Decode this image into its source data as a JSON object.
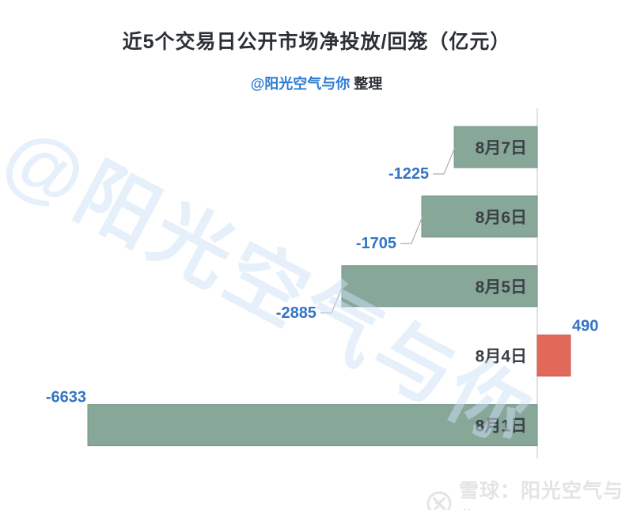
{
  "title": "近5个交易日公开市场净投放/回笼（亿元）",
  "subtitle": {
    "handle": "@阳光空气与你",
    "suffix": "整理"
  },
  "watermark": "@阳光空气与你",
  "footer": {
    "logo": "xueqiu-snowball-icon",
    "source": "雪球：阳光空气与你"
  },
  "colors": {
    "title_text": "#2b2f36",
    "subtitle_handle": "#2d7bd3",
    "bar_negative": "#87a798",
    "bar_negative_border": "#74968a",
    "bar_positive": "#e2685a",
    "bar_positive_border": "#d05a4c",
    "value_label": "#3274c5",
    "category_label": "#3b4046",
    "leader_line": "#aeaeae",
    "axis_line": "#d9d9d9",
    "watermark_text": "#e3edf8",
    "footer_text": "#e4e4e4"
  },
  "chart_data": {
    "type": "bar",
    "orientation": "horizontal",
    "title": "近5个交易日公开市场净投放/回笼（亿元）",
    "unit": "亿元",
    "categories": [
      "8月7日",
      "8月6日",
      "8月5日",
      "8月4日",
      "8月1日"
    ],
    "values": [
      -1225,
      -1705,
      -2885,
      490,
      -6633
    ],
    "value_labels": [
      "-1225",
      "-1705",
      "-2885",
      "490",
      "-6633"
    ],
    "label_positions": [
      "below-leader",
      "below-leader",
      "below-leader",
      "above-end",
      "above-start"
    ],
    "xlim": [
      -6633,
      490
    ],
    "xlabel": "",
    "ylabel": "",
    "grid": false,
    "legend": false,
    "axis_style": "zero-baseline-only"
  }
}
